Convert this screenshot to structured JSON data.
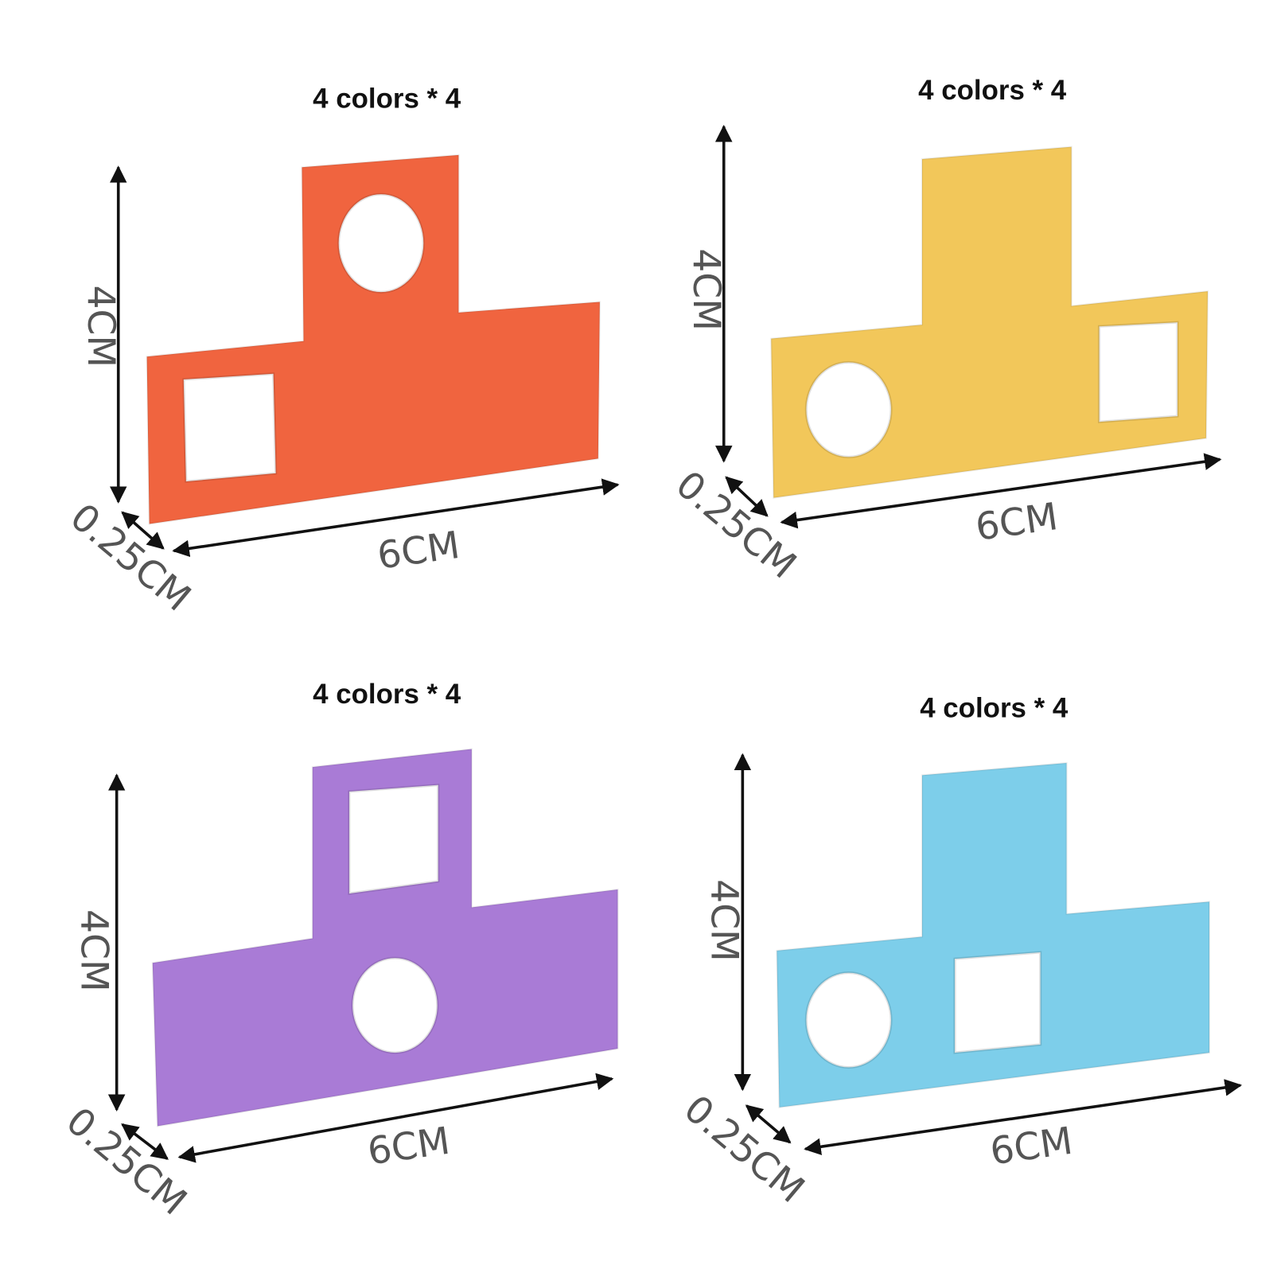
{
  "panels": [
    {
      "title": "4 colors * 4",
      "height_label": "4CM",
      "width_label": "6CM",
      "thickness_label": "0.25CM",
      "color": "#F0643F"
    },
    {
      "title": "4 colors * 4",
      "height_label": "4CM",
      "width_label": "6CM",
      "thickness_label": "0.25CM",
      "color": "#F2C75A"
    },
    {
      "title": "4 colors * 4",
      "height_label": "4CM",
      "width_label": "6CM",
      "thickness_label": "0.25CM",
      "color": "#A97BD6"
    },
    {
      "title": "4 colors * 4",
      "height_label": "4CM",
      "width_label": "6CM",
      "thickness_label": "0.25CM",
      "color": "#7DCEEA"
    }
  ]
}
